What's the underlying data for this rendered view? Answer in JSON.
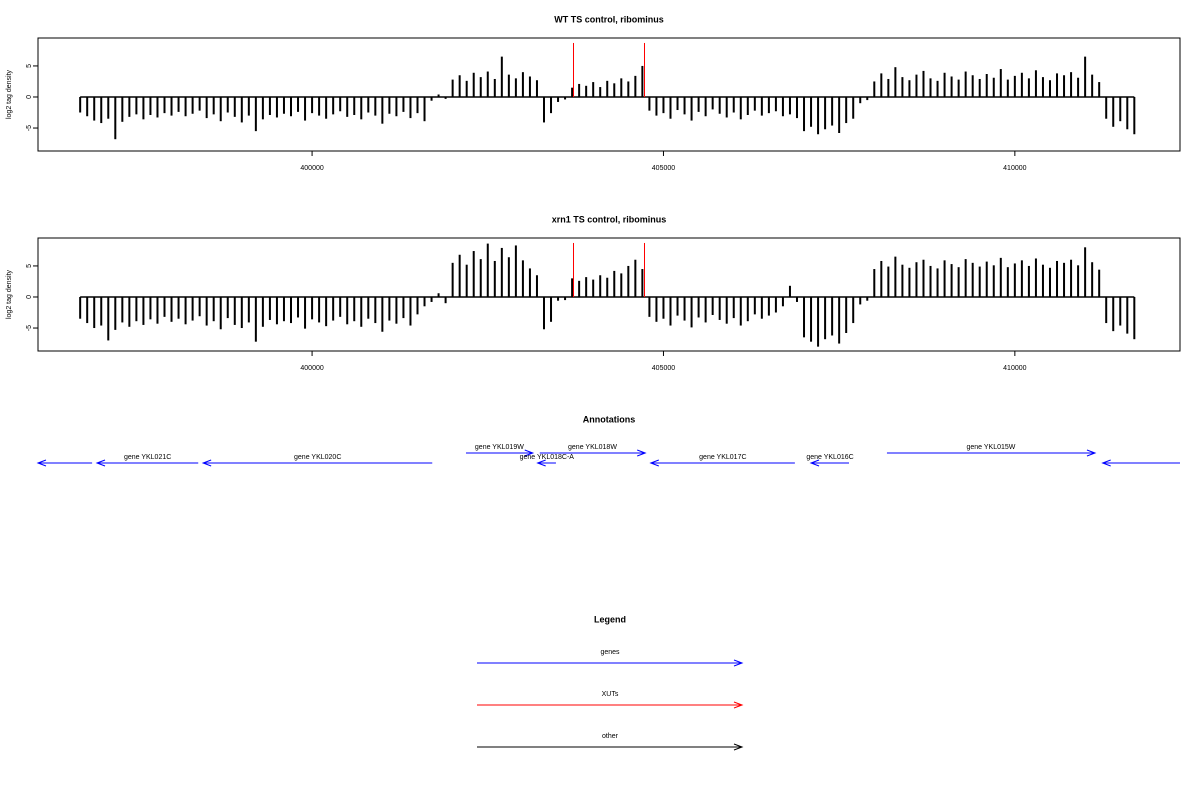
{
  "chart_data": [
    {
      "type": "bar",
      "title": "WT TS control, ribominus",
      "ylabel": "log2 tag density",
      "color": "#000000",
      "xlim": [
        396100,
        412350
      ],
      "ylim": [
        -8.7,
        9.5
      ],
      "xticks": [
        400000,
        405000,
        410000
      ],
      "yticks": [
        -5,
        0,
        5
      ],
      "x": [
        396700,
        396800,
        396900,
        397000,
        397100,
        397200,
        397300,
        397400,
        397500,
        397600,
        397700,
        397800,
        397900,
        398000,
        398100,
        398200,
        398300,
        398400,
        398500,
        398600,
        398700,
        398800,
        398900,
        399000,
        399100,
        399200,
        399300,
        399400,
        399500,
        399600,
        399700,
        399800,
        399900,
        400000,
        400100,
        400200,
        400300,
        400400,
        400500,
        400600,
        400700,
        400800,
        400900,
        401000,
        401100,
        401200,
        401300,
        401400,
        401500,
        401600,
        401700,
        401800,
        401900,
        402000,
        402100,
        402200,
        402300,
        402400,
        402500,
        402600,
        402700,
        402800,
        402900,
        403000,
        403100,
        403200,
        403300,
        403400,
        403500,
        403600,
        403700,
        403800,
        403900,
        404000,
        404100,
        404200,
        404300,
        404400,
        404500,
        404600,
        404700,
        404800,
        404900,
        405000,
        405100,
        405200,
        405300,
        405400,
        405500,
        405600,
        405700,
        405800,
        405900,
        406000,
        406100,
        406200,
        406300,
        406400,
        406500,
        406600,
        406700,
        406800,
        406900,
        407000,
        407100,
        407200,
        407300,
        407400,
        407500,
        407600,
        407700,
        407800,
        407900,
        408000,
        408100,
        408200,
        408300,
        408400,
        408500,
        408600,
        408700,
        408800,
        408900,
        409000,
        409100,
        409200,
        409300,
        409400,
        409500,
        409600,
        409700,
        409800,
        409900,
        410000,
        410100,
        410200,
        410300,
        410400,
        410500,
        410600,
        410700,
        410800,
        410900,
        411000,
        411100,
        411200,
        411300,
        411400,
        411500,
        411600,
        411700
      ],
      "values": [
        -2.5,
        -3.1,
        -3.8,
        -4.2,
        -3.5,
        -6.8,
        -4.0,
        -3.2,
        -2.8,
        -3.6,
        -2.9,
        -3.3,
        -2.6,
        -3.0,
        -2.4,
        -3.1,
        -2.7,
        -2.2,
        -3.4,
        -2.8,
        -3.9,
        -2.5,
        -3.2,
        -4.1,
        -3.0,
        -5.5,
        -3.6,
        -2.9,
        -3.3,
        -2.7,
        -3.1,
        -2.4,
        -3.8,
        -2.6,
        -3.0,
        -3.5,
        -2.8,
        -2.3,
        -3.2,
        -2.9,
        -3.6,
        -2.5,
        -3.0,
        -4.3,
        -2.7,
        -3.1,
        -2.4,
        -3.4,
        -2.6,
        -3.9,
        -0.6,
        0.4,
        -0.3,
        2.8,
        3.5,
        2.6,
        3.9,
        3.2,
        4.1,
        2.9,
        6.5,
        3.6,
        3.0,
        4.0,
        3.3,
        2.7,
        -4.1,
        -2.6,
        -0.8,
        -0.4,
        1.5,
        2.1,
        1.8,
        2.4,
        1.6,
        2.6,
        2.2,
        3.0,
        2.5,
        3.4,
        5.0,
        -2.2,
        -3.0,
        -2.6,
        -3.5,
        -2.1,
        -2.8,
        -3.8,
        -2.4,
        -3.1,
        -2.0,
        -2.7,
        -3.3,
        -2.5,
        -3.6,
        -2.9,
        -2.2,
        -3.0,
        -2.6,
        -2.3,
        -3.1,
        -2.8,
        -3.4,
        -5.5,
        -4.8,
        -6.0,
        -5.2,
        -4.6,
        -5.8,
        -4.2,
        -3.5,
        -1.0,
        -0.5,
        2.5,
        3.8,
        2.9,
        4.8,
        3.2,
        2.7,
        3.6,
        4.2,
        3.0,
        2.6,
        3.9,
        3.3,
        2.8,
        4.1,
        3.5,
        2.9,
        3.7,
        3.1,
        4.5,
        2.8,
        3.4,
        3.9,
        3.0,
        4.3,
        3.2,
        2.7,
        3.8,
        3.5,
        4.0,
        3.1,
        6.5,
        3.6,
        2.4,
        -3.5,
        -4.8,
        -3.9,
        -5.2,
        -6.0
      ],
      "markers": {
        "color": "#ff0000",
        "x": [
          403720,
          404730
        ],
        "values": [
          8.7,
          8.7
        ]
      }
    },
    {
      "type": "bar",
      "title": "xrn1 TS control, ribominus",
      "ylabel": "log2 tag density",
      "color": "#000000",
      "xlim": [
        396100,
        412350
      ],
      "ylim": [
        -8.7,
        9.5
      ],
      "xticks": [
        400000,
        405000,
        410000
      ],
      "yticks": [
        -5,
        0,
        5
      ],
      "x": [
        396700,
        396800,
        396900,
        397000,
        397100,
        397200,
        397300,
        397400,
        397500,
        397600,
        397700,
        397800,
        397900,
        398000,
        398100,
        398200,
        398300,
        398400,
        398500,
        398600,
        398700,
        398800,
        398900,
        399000,
        399100,
        399200,
        399300,
        399400,
        399500,
        399600,
        399700,
        399800,
        399900,
        400000,
        400100,
        400200,
        400300,
        400400,
        400500,
        400600,
        400700,
        400800,
        400900,
        401000,
        401100,
        401200,
        401300,
        401400,
        401500,
        401600,
        401700,
        401800,
        401900,
        402000,
        402100,
        402200,
        402300,
        402400,
        402500,
        402600,
        402700,
        402800,
        402900,
        403000,
        403100,
        403200,
        403300,
        403400,
        403500,
        403600,
        403700,
        403800,
        403900,
        404000,
        404100,
        404200,
        404300,
        404400,
        404500,
        404600,
        404700,
        404800,
        404900,
        405000,
        405100,
        405200,
        405300,
        405400,
        405500,
        405600,
        405700,
        405800,
        405900,
        406000,
        406100,
        406200,
        406300,
        406400,
        406500,
        406600,
        406700,
        406800,
        406900,
        407000,
        407100,
        407200,
        407300,
        407400,
        407500,
        407600,
        407700,
        407800,
        407900,
        408000,
        408100,
        408200,
        408300,
        408400,
        408500,
        408600,
        408700,
        408800,
        408900,
        409000,
        409100,
        409200,
        409300,
        409400,
        409500,
        409600,
        409700,
        409800,
        409900,
        410000,
        410100,
        410200,
        410300,
        410400,
        410500,
        410600,
        410700,
        410800,
        410900,
        411000,
        411100,
        411200,
        411300,
        411400,
        411500,
        411600,
        411700
      ],
      "values": [
        -3.5,
        -4.2,
        -5.0,
        -4.6,
        -7.0,
        -5.3,
        -4.1,
        -4.8,
        -3.9,
        -4.5,
        -3.6,
        -4.3,
        -3.2,
        -4.0,
        -3.5,
        -4.4,
        -3.8,
        -3.1,
        -4.6,
        -3.9,
        -5.2,
        -3.4,
        -4.5,
        -5.0,
        -4.1,
        -7.2,
        -4.8,
        -3.7,
        -4.4,
        -3.9,
        -4.2,
        -3.3,
        -5.1,
        -3.6,
        -4.1,
        -4.7,
        -3.8,
        -3.2,
        -4.4,
        -3.9,
        -4.8,
        -3.5,
        -4.2,
        -5.6,
        -3.8,
        -4.3,
        -3.4,
        -4.6,
        -2.8,
        -1.5,
        -0.8,
        0.6,
        -1.0,
        5.5,
        6.8,
        5.2,
        7.4,
        6.1,
        8.6,
        5.8,
        7.9,
        6.4,
        8.3,
        5.9,
        4.6,
        3.5,
        -5.2,
        -4.0,
        -0.6,
        -0.5,
        3.0,
        2.6,
        3.2,
        2.8,
        3.5,
        3.1,
        4.2,
        3.8,
        5.0,
        6.0,
        4.5,
        -3.2,
        -4.0,
        -3.5,
        -4.6,
        -3.0,
        -3.8,
        -4.9,
        -3.3,
        -4.1,
        -2.9,
        -3.7,
        -4.3,
        -3.4,
        -4.6,
        -3.9,
        -2.8,
        -3.5,
        -3.0,
        -2.5,
        -1.5,
        1.8,
        -0.8,
        -6.5,
        -7.2,
        -8.0,
        -6.8,
        -6.2,
        -7.5,
        -5.8,
        -4.2,
        -1.2,
        -0.6,
        4.5,
        5.8,
        4.9,
        6.5,
        5.2,
        4.7,
        5.6,
        6.0,
        5.0,
        4.6,
        5.9,
        5.3,
        4.8,
        6.1,
        5.5,
        4.9,
        5.7,
        5.1,
        6.3,
        4.8,
        5.4,
        5.9,
        5.0,
        6.2,
        5.2,
        4.7,
        5.8,
        5.5,
        6.0,
        5.1,
        8.0,
        5.6,
        4.4,
        -4.2,
        -5.5,
        -4.6,
        -5.9,
        -6.8
      ],
      "markers": {
        "color": "#ff0000",
        "x": [
          403720,
          404730
        ],
        "values": [
          8.7,
          8.7
        ]
      }
    }
  ],
  "annotations": {
    "title": "Annotations",
    "color": "#0000ff",
    "xlim": [
      396100,
      412350
    ],
    "genes": [
      {
        "start": 396100,
        "end": 396870,
        "strand": "-"
      },
      {
        "label": "gene YKL021C",
        "start": 396940,
        "end": 398380,
        "strand": "-"
      },
      {
        "label": "gene YKL020C",
        "start": 398450,
        "end": 401710,
        "strand": "-"
      },
      {
        "label": "gene YKL019W",
        "start": 402190,
        "end": 403140,
        "strand": "+"
      },
      {
        "label": "gene YKL018C-A",
        "start": 403210,
        "end": 403470,
        "strand": "-"
      },
      {
        "label": "gene YKL018W",
        "start": 403240,
        "end": 404740,
        "strand": "+"
      },
      {
        "label": "gene YKL017C",
        "start": 404820,
        "end": 406870,
        "strand": "-"
      },
      {
        "label": "gene YKL016C",
        "start": 407100,
        "end": 407640,
        "strand": "-"
      },
      {
        "label": "gene YKL015W",
        "start": 408180,
        "end": 411140,
        "strand": "+"
      },
      {
        "start": 411250,
        "end": 412350,
        "strand": "-"
      }
    ]
  },
  "legend": {
    "title": "Legend",
    "items": [
      {
        "label": "genes",
        "color": "#0000ff"
      },
      {
        "label": "XUTs",
        "color": "#ff0000"
      },
      {
        "label": "other",
        "color": "#000000"
      }
    ]
  }
}
